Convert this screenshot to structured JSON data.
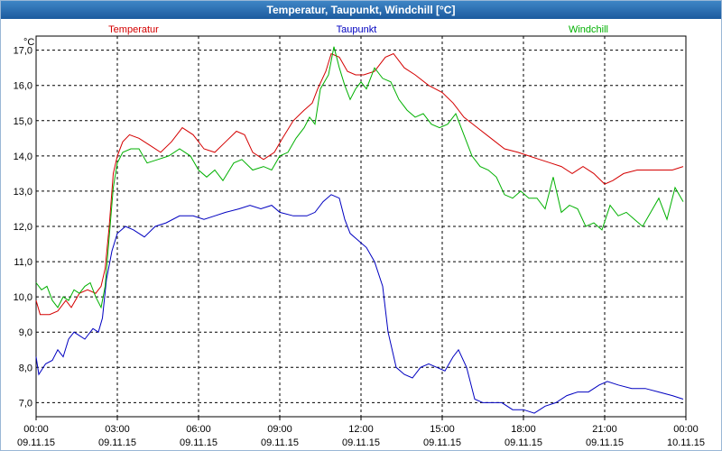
{
  "window": {
    "title": "Temperatur, Taupunkt, Windchill [°C]"
  },
  "chart_data": {
    "type": "line",
    "title": "Temperatur, Taupunkt, Windchill [°C]",
    "ylabel": "°C",
    "xlabel": "",
    "ylim": [
      6.6,
      17.4
    ],
    "xlim": [
      0,
      24
    ],
    "grid": true,
    "yticks": [
      7.0,
      8.0,
      9.0,
      10.0,
      11.0,
      12.0,
      13.0,
      14.0,
      15.0,
      16.0,
      17.0
    ],
    "ytick_labels": [
      "7,0",
      "8,0",
      "9,0",
      "10,0",
      "11,0",
      "12,0",
      "13,0",
      "14,0",
      "15,0",
      "16,0",
      "17,0"
    ],
    "xticks": [
      0,
      3,
      6,
      9,
      12,
      15,
      18,
      21,
      24
    ],
    "xtick_labels": [
      {
        "time": "00:00",
        "date": "09.11.15"
      },
      {
        "time": "03:00",
        "date": "09.11.15"
      },
      {
        "time": "06:00",
        "date": "09.11.15"
      },
      {
        "time": "09:00",
        "date": "09.11.15"
      },
      {
        "time": "12:00",
        "date": "09.11.15"
      },
      {
        "time": "15:00",
        "date": "09.11.15"
      },
      {
        "time": "18:00",
        "date": "09.11.15"
      },
      {
        "time": "21:00",
        "date": "09.11.15"
      },
      {
        "time": "00:00",
        "date": "10.11.15"
      }
    ],
    "legend": [
      {
        "name": "Temperatur",
        "color": "#d40000"
      },
      {
        "name": "Taupunkt",
        "color": "#0000c0"
      },
      {
        "name": "Windchill",
        "color": "#00b000"
      }
    ],
    "series": [
      {
        "name": "Temperatur",
        "color": "#d40000",
        "points": [
          [
            0,
            9.9
          ],
          [
            0.15,
            9.5
          ],
          [
            0.5,
            9.5
          ],
          [
            0.8,
            9.6
          ],
          [
            1.1,
            9.9
          ],
          [
            1.3,
            9.7
          ],
          [
            1.6,
            10.1
          ],
          [
            1.9,
            10.2
          ],
          [
            2.2,
            10.1
          ],
          [
            2.4,
            10.3
          ],
          [
            2.55,
            10.8
          ],
          [
            2.7,
            12.0
          ],
          [
            2.85,
            13.5
          ],
          [
            3.0,
            14.0
          ],
          [
            3.2,
            14.4
          ],
          [
            3.45,
            14.6
          ],
          [
            3.8,
            14.5
          ],
          [
            4.2,
            14.3
          ],
          [
            4.6,
            14.1
          ],
          [
            5.0,
            14.4
          ],
          [
            5.4,
            14.8
          ],
          [
            5.8,
            14.6
          ],
          [
            6.2,
            14.2
          ],
          [
            6.6,
            14.1
          ],
          [
            7.0,
            14.4
          ],
          [
            7.4,
            14.7
          ],
          [
            7.7,
            14.6
          ],
          [
            8.0,
            14.1
          ],
          [
            8.4,
            13.9
          ],
          [
            8.8,
            14.1
          ],
          [
            9.1,
            14.5
          ],
          [
            9.5,
            15.0
          ],
          [
            9.9,
            15.3
          ],
          [
            10.2,
            15.5
          ],
          [
            10.4,
            15.9
          ],
          [
            10.7,
            16.4
          ],
          [
            10.9,
            16.9
          ],
          [
            11.2,
            16.8
          ],
          [
            11.5,
            16.4
          ],
          [
            11.8,
            16.3
          ],
          [
            12.1,
            16.3
          ],
          [
            12.5,
            16.4
          ],
          [
            12.9,
            16.8
          ],
          [
            13.2,
            16.9
          ],
          [
            13.6,
            16.5
          ],
          [
            14.0,
            16.3
          ],
          [
            14.5,
            16.0
          ],
          [
            15.0,
            15.8
          ],
          [
            15.4,
            15.5
          ],
          [
            15.8,
            15.1
          ],
          [
            16.3,
            14.8
          ],
          [
            16.8,
            14.5
          ],
          [
            17.3,
            14.2
          ],
          [
            17.8,
            14.1
          ],
          [
            18.2,
            14.0
          ],
          [
            18.6,
            13.9
          ],
          [
            19.0,
            13.8
          ],
          [
            19.4,
            13.7
          ],
          [
            19.8,
            13.5
          ],
          [
            20.2,
            13.7
          ],
          [
            20.6,
            13.5
          ],
          [
            21.0,
            13.2
          ],
          [
            21.3,
            13.3
          ],
          [
            21.7,
            13.5
          ],
          [
            22.2,
            13.6
          ],
          [
            22.7,
            13.6
          ],
          [
            23.1,
            13.6
          ],
          [
            23.5,
            13.6
          ],
          [
            23.9,
            13.7
          ]
        ]
      },
      {
        "name": "Taupunkt",
        "color": "#0000c0",
        "points": [
          [
            0,
            8.3
          ],
          [
            0.1,
            7.8
          ],
          [
            0.35,
            8.1
          ],
          [
            0.6,
            8.2
          ],
          [
            0.8,
            8.5
          ],
          [
            1.0,
            8.3
          ],
          [
            1.2,
            8.8
          ],
          [
            1.4,
            9.0
          ],
          [
            1.6,
            8.9
          ],
          [
            1.8,
            8.8
          ],
          [
            2.1,
            9.1
          ],
          [
            2.3,
            9.0
          ],
          [
            2.45,
            9.4
          ],
          [
            2.6,
            10.5
          ],
          [
            2.8,
            11.3
          ],
          [
            3.0,
            11.8
          ],
          [
            3.3,
            12.0
          ],
          [
            3.6,
            11.9
          ],
          [
            4.0,
            11.7
          ],
          [
            4.4,
            12.0
          ],
          [
            4.8,
            12.1
          ],
          [
            5.3,
            12.3
          ],
          [
            5.8,
            12.3
          ],
          [
            6.2,
            12.2
          ],
          [
            6.6,
            12.3
          ],
          [
            7.0,
            12.4
          ],
          [
            7.5,
            12.5
          ],
          [
            7.9,
            12.6
          ],
          [
            8.3,
            12.5
          ],
          [
            8.7,
            12.6
          ],
          [
            9.0,
            12.4
          ],
          [
            9.5,
            12.3
          ],
          [
            10.0,
            12.3
          ],
          [
            10.3,
            12.4
          ],
          [
            10.6,
            12.7
          ],
          [
            10.9,
            12.9
          ],
          [
            11.2,
            12.8
          ],
          [
            11.4,
            12.2
          ],
          [
            11.6,
            11.8
          ],
          [
            11.9,
            11.6
          ],
          [
            12.2,
            11.4
          ],
          [
            12.5,
            11.0
          ],
          [
            12.8,
            10.3
          ],
          [
            13.0,
            9.0
          ],
          [
            13.3,
            8.0
          ],
          [
            13.6,
            7.8
          ],
          [
            13.9,
            7.7
          ],
          [
            14.2,
            8.0
          ],
          [
            14.5,
            8.1
          ],
          [
            14.8,
            8.0
          ],
          [
            15.1,
            7.9
          ],
          [
            15.4,
            8.3
          ],
          [
            15.6,
            8.5
          ],
          [
            15.9,
            8.0
          ],
          [
            16.2,
            7.1
          ],
          [
            16.5,
            7.0
          ],
          [
            16.9,
            7.0
          ],
          [
            17.2,
            7.0
          ],
          [
            17.6,
            6.8
          ],
          [
            18.0,
            6.8
          ],
          [
            18.4,
            6.7
          ],
          [
            18.8,
            6.9
          ],
          [
            19.2,
            7.0
          ],
          [
            19.6,
            7.2
          ],
          [
            20.0,
            7.3
          ],
          [
            20.4,
            7.3
          ],
          [
            20.8,
            7.5
          ],
          [
            21.1,
            7.6
          ],
          [
            21.5,
            7.5
          ],
          [
            22.0,
            7.4
          ],
          [
            22.5,
            7.4
          ],
          [
            23.0,
            7.3
          ],
          [
            23.5,
            7.2
          ],
          [
            23.9,
            7.1
          ]
        ]
      },
      {
        "name": "Windchill",
        "color": "#00b000",
        "points": [
          [
            0,
            10.4
          ],
          [
            0.2,
            10.2
          ],
          [
            0.4,
            10.3
          ],
          [
            0.6,
            9.9
          ],
          [
            0.8,
            9.7
          ],
          [
            1.0,
            10.0
          ],
          [
            1.2,
            9.9
          ],
          [
            1.4,
            10.2
          ],
          [
            1.6,
            10.1
          ],
          [
            1.8,
            10.3
          ],
          [
            2.0,
            10.4
          ],
          [
            2.2,
            10.0
          ],
          [
            2.4,
            9.7
          ],
          [
            2.55,
            10.3
          ],
          [
            2.7,
            11.7
          ],
          [
            2.85,
            13.1
          ],
          [
            3.0,
            13.8
          ],
          [
            3.2,
            14.1
          ],
          [
            3.5,
            14.2
          ],
          [
            3.8,
            14.2
          ],
          [
            4.1,
            13.8
          ],
          [
            4.5,
            13.9
          ],
          [
            4.9,
            14.0
          ],
          [
            5.3,
            14.2
          ],
          [
            5.7,
            14.0
          ],
          [
            6.0,
            13.6
          ],
          [
            6.3,
            13.4
          ],
          [
            6.6,
            13.6
          ],
          [
            6.9,
            13.3
          ],
          [
            7.3,
            13.8
          ],
          [
            7.6,
            13.9
          ],
          [
            8.0,
            13.6
          ],
          [
            8.4,
            13.7
          ],
          [
            8.7,
            13.6
          ],
          [
            9.0,
            14.0
          ],
          [
            9.3,
            14.1
          ],
          [
            9.6,
            14.5
          ],
          [
            9.9,
            14.8
          ],
          [
            10.1,
            15.1
          ],
          [
            10.3,
            14.9
          ],
          [
            10.5,
            15.9
          ],
          [
            10.8,
            16.3
          ],
          [
            11.0,
            17.1
          ],
          [
            11.2,
            16.5
          ],
          [
            11.4,
            16.0
          ],
          [
            11.6,
            15.6
          ],
          [
            11.8,
            15.9
          ],
          [
            12.0,
            16.1
          ],
          [
            12.2,
            15.9
          ],
          [
            12.5,
            16.5
          ],
          [
            12.8,
            16.2
          ],
          [
            13.1,
            16.1
          ],
          [
            13.4,
            15.6
          ],
          [
            13.7,
            15.3
          ],
          [
            14.0,
            15.1
          ],
          [
            14.3,
            15.2
          ],
          [
            14.6,
            14.9
          ],
          [
            14.9,
            14.8
          ],
          [
            15.2,
            14.9
          ],
          [
            15.5,
            15.2
          ],
          [
            15.8,
            14.6
          ],
          [
            16.1,
            14.0
          ],
          [
            16.4,
            13.7
          ],
          [
            16.7,
            13.6
          ],
          [
            17.0,
            13.4
          ],
          [
            17.3,
            12.9
          ],
          [
            17.6,
            12.8
          ],
          [
            17.9,
            13.0
          ],
          [
            18.2,
            12.8
          ],
          [
            18.5,
            12.8
          ],
          [
            18.8,
            12.5
          ],
          [
            19.1,
            13.4
          ],
          [
            19.4,
            12.4
          ],
          [
            19.7,
            12.6
          ],
          [
            20.0,
            12.5
          ],
          [
            20.3,
            12.0
          ],
          [
            20.6,
            12.1
          ],
          [
            20.9,
            11.9
          ],
          [
            21.2,
            12.6
          ],
          [
            21.5,
            12.3
          ],
          [
            21.8,
            12.4
          ],
          [
            22.1,
            12.2
          ],
          [
            22.4,
            12.0
          ],
          [
            22.7,
            12.4
          ],
          [
            23.0,
            12.8
          ],
          [
            23.3,
            12.2
          ],
          [
            23.6,
            13.1
          ],
          [
            23.9,
            12.7
          ]
        ]
      }
    ]
  }
}
